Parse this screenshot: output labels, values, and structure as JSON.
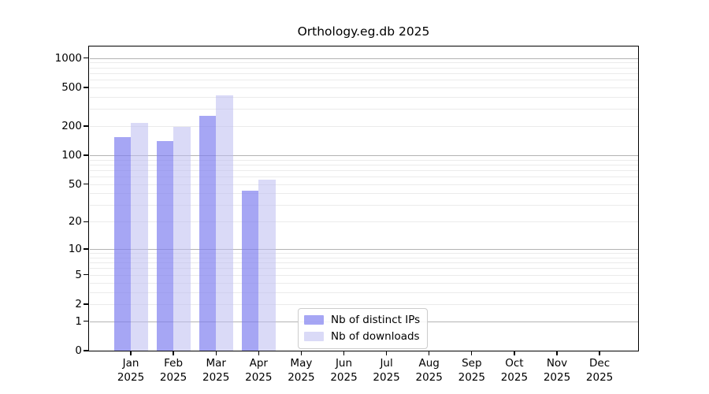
{
  "chart_data": {
    "type": "bar",
    "title": "Orthology.eg.db 2025",
    "categories": [
      "Jan",
      "Feb",
      "Mar",
      "Apr",
      "May",
      "Jun",
      "Jul",
      "Aug",
      "Sep",
      "Oct",
      "Nov",
      "Dec"
    ],
    "category_year": "2025",
    "series": [
      {
        "name": "Nb of distinct IPs",
        "color": "rgba(128,128,240,0.70)",
        "values": [
          155,
          140,
          255,
          43,
          null,
          null,
          null,
          null,
          null,
          null,
          null,
          null
        ]
      },
      {
        "name": "Nb of downloads",
        "color": "rgba(187,187,240,0.55)",
        "values": [
          215,
          198,
          415,
          56,
          null,
          null,
          null,
          null,
          null,
          null,
          null,
          null
        ]
      }
    ],
    "xlabel": "",
    "ylabel": "",
    "y_scale": "log1p",
    "ylim": [
      0,
      1304
    ],
    "y_ticks": [
      1000,
      500,
      200,
      100,
      50,
      20,
      10,
      5,
      2,
      1,
      0
    ],
    "y_minor_ticks": [
      2,
      3,
      4,
      5,
      6,
      7,
      8,
      9,
      20,
      30,
      40,
      50,
      60,
      70,
      80,
      90,
      200,
      300,
      400,
      500,
      600,
      700,
      800,
      900
    ],
    "y_major_gridlines": [
      1,
      10,
      100,
      1000
    ],
    "grid": "horizontal",
    "legend": {
      "position": "bottom-center",
      "entries": [
        "Nb of distinct IPs",
        "Nb of downloads"
      ]
    }
  },
  "colors": {
    "bar_distinct_ips_rendered": "#a6a6f4",
    "bar_downloads_rendered": "#d9d9f7",
    "grid_major": "#b3b3b3",
    "grid_minor": "#ebebeb",
    "spine": "#000000",
    "background": "#ffffff"
  }
}
